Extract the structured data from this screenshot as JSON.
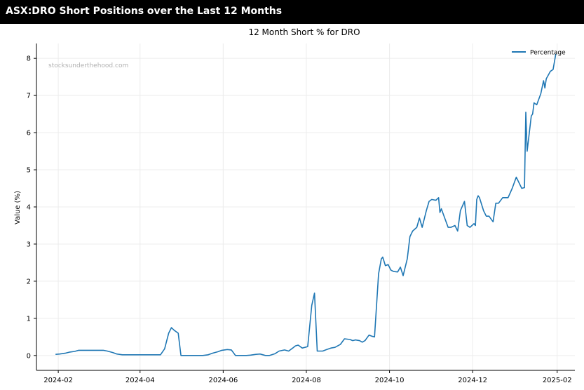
{
  "header": {
    "title": "ASX:DRO Short Positions over the Last 12 Months"
  },
  "colors": {
    "line": "#1f77b4",
    "header_bg": "#000000",
    "header_text": "#ffffff",
    "grid": "#ececec"
  },
  "chart_data": {
    "type": "line",
    "title": "12 Month Short % for DRO",
    "xlabel": "",
    "ylabel": "Value (%)",
    "ylim": [
      -0.4,
      8.4
    ],
    "xlim": [
      "2024-01-16",
      "2025-02-14"
    ],
    "yticks": [
      0,
      1,
      2,
      3,
      4,
      5,
      6,
      7,
      8
    ],
    "xticks": [
      "2024-02",
      "2024-04",
      "2024-06",
      "2024-08",
      "2024-10",
      "2024-12",
      "2025-02"
    ],
    "xtick_dates": [
      "2024-02-01",
      "2024-04-01",
      "2024-06-01",
      "2024-08-01",
      "2024-10-01",
      "2024-12-01",
      "2025-02-01"
    ],
    "grid": true,
    "legend": {
      "position": "top-right",
      "entries": [
        "Percentage"
      ]
    },
    "watermark": "stocksunderthehood.com",
    "series": [
      {
        "name": "Percentage",
        "x": [
          "2024-01-30",
          "2024-02-02",
          "2024-02-06",
          "2024-02-09",
          "2024-02-13",
          "2024-02-16",
          "2024-02-20",
          "2024-02-23",
          "2024-02-27",
          "2024-03-01",
          "2024-03-05",
          "2024-03-08",
          "2024-03-12",
          "2024-03-15",
          "2024-03-19",
          "2024-03-22",
          "2024-03-26",
          "2024-03-29",
          "2024-04-03",
          "2024-04-08",
          "2024-04-12",
          "2024-04-16",
          "2024-04-19",
          "2024-04-22",
          "2024-04-24",
          "2024-04-26",
          "2024-04-29",
          "2024-05-01",
          "2024-05-03",
          "2024-05-07",
          "2024-05-10",
          "2024-05-14",
          "2024-05-17",
          "2024-05-21",
          "2024-05-24",
          "2024-05-28",
          "2024-05-31",
          "2024-06-04",
          "2024-06-07",
          "2024-06-10",
          "2024-06-12",
          "2024-06-14",
          "2024-06-18",
          "2024-06-21",
          "2024-06-25",
          "2024-06-28",
          "2024-07-02",
          "2024-07-05",
          "2024-07-09",
          "2024-07-12",
          "2024-07-16",
          "2024-07-19",
          "2024-07-22",
          "2024-07-24",
          "2024-07-26",
          "2024-07-29",
          "2024-07-31",
          "2024-08-02",
          "2024-08-05",
          "2024-08-07",
          "2024-08-09",
          "2024-08-11",
          "2024-08-13",
          "2024-08-16",
          "2024-08-19",
          "2024-08-22",
          "2024-08-26",
          "2024-08-29",
          "2024-09-02",
          "2024-09-04",
          "2024-09-06",
          "2024-09-09",
          "2024-09-11",
          "2024-09-13",
          "2024-09-16",
          "2024-09-18",
          "2024-09-20",
          "2024-09-23",
          "2024-09-25",
          "2024-09-26",
          "2024-09-28",
          "2024-09-30",
          "2024-10-02",
          "2024-10-04",
          "2024-10-07",
          "2024-10-09",
          "2024-10-11",
          "2024-10-14",
          "2024-10-16",
          "2024-10-18",
          "2024-10-21",
          "2024-10-23",
          "2024-10-25",
          "2024-10-28",
          "2024-10-30",
          "2024-11-01",
          "2024-11-04",
          "2024-11-06",
          "2024-11-07",
          "2024-11-08",
          "2024-11-11",
          "2024-11-13",
          "2024-11-15",
          "2024-11-18",
          "2024-11-20",
          "2024-11-22",
          "2024-11-25",
          "2024-11-27",
          "2024-11-29",
          "2024-12-02",
          "2024-12-03",
          "2024-12-04",
          "2024-12-05",
          "2024-12-06",
          "2024-12-09",
          "2024-12-11",
          "2024-12-13",
          "2024-12-16",
          "2024-12-18",
          "2024-12-20",
          "2024-12-23",
          "2024-12-27",
          "2024-12-30",
          "2025-01-02",
          "2025-01-06",
          "2025-01-08",
          "2025-01-09",
          "2025-01-10",
          "2025-01-13",
          "2025-01-14",
          "2025-01-15",
          "2025-01-17",
          "2025-01-20",
          "2025-01-22",
          "2025-01-23",
          "2025-01-24",
          "2025-01-27",
          "2025-01-29",
          "2025-01-31"
        ],
        "values": [
          0.03,
          0.04,
          0.06,
          0.09,
          0.11,
          0.14,
          0.14,
          0.14,
          0.14,
          0.14,
          0.14,
          0.12,
          0.08,
          0.04,
          0.02,
          0.02,
          0.02,
          0.02,
          0.02,
          0.02,
          0.02,
          0.02,
          0.18,
          0.6,
          0.75,
          0.68,
          0.6,
          0.0,
          0.0,
          0.0,
          0.0,
          0.0,
          0.0,
          0.02,
          0.06,
          0.1,
          0.14,
          0.16,
          0.15,
          0.0,
          0.0,
          0.0,
          0.0,
          0.01,
          0.03,
          0.04,
          0.0,
          0.0,
          0.05,
          0.12,
          0.15,
          0.12,
          0.2,
          0.26,
          0.28,
          0.2,
          0.22,
          0.24,
          1.35,
          1.68,
          0.12,
          0.12,
          0.12,
          0.16,
          0.2,
          0.22,
          0.3,
          0.45,
          0.43,
          0.4,
          0.42,
          0.4,
          0.36,
          0.4,
          0.55,
          0.52,
          0.5,
          2.2,
          2.6,
          2.65,
          2.42,
          2.45,
          2.3,
          2.26,
          2.25,
          2.38,
          2.15,
          2.6,
          3.2,
          3.35,
          3.45,
          3.7,
          3.45,
          3.9,
          4.15,
          4.2,
          4.18,
          4.25,
          3.85,
          3.95,
          3.65,
          3.45,
          3.45,
          3.5,
          3.35,
          3.9,
          4.15,
          3.5,
          3.45,
          3.55,
          3.5,
          4.2,
          4.3,
          4.25,
          3.9,
          3.75,
          3.75,
          3.6,
          4.1,
          4.1,
          4.25,
          4.25,
          4.5,
          4.8,
          4.5,
          4.52,
          6.55,
          5.5,
          6.45,
          6.5,
          6.8,
          6.75,
          7.05,
          7.4,
          7.2,
          7.45,
          7.65,
          7.7,
          8.12
        ]
      }
    ]
  }
}
